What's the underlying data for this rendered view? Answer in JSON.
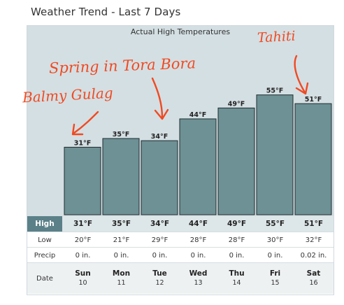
{
  "page_title": "Weather Trend - Last 7 Days",
  "chart_data": {
    "type": "bar",
    "title": "Actual High Temperatures",
    "categories": [
      "Sun",
      "Mon",
      "Tue",
      "Wed",
      "Thu",
      "Fri",
      "Sat"
    ],
    "values": [
      31,
      35,
      34,
      44,
      49,
      55,
      51
    ],
    "labels": [
      "31°F",
      "35°F",
      "34°F",
      "44°F",
      "49°F",
      "55°F",
      "51°F"
    ],
    "unit": "°F",
    "bar_color": "#6d9195",
    "background_color": "#d4dfe3"
  },
  "table": {
    "rows": [
      {
        "header": "High",
        "values": [
          "31°F",
          "35°F",
          "34°F",
          "44°F",
          "49°F",
          "55°F",
          "51°F"
        ]
      },
      {
        "header": "Low",
        "values": [
          "20°F",
          "21°F",
          "29°F",
          "28°F",
          "28°F",
          "30°F",
          "32°F"
        ]
      },
      {
        "header": "Precip",
        "values": [
          "0 in.",
          "0 in.",
          "0 in.",
          "0 in.",
          "0 in.",
          "0 in.",
          "0.02 in."
        ]
      }
    ],
    "date_header": "Date",
    "days": [
      {
        "dow": "Sun",
        "day": "10"
      },
      {
        "dow": "Mon",
        "day": "11"
      },
      {
        "dow": "Tue",
        "day": "12"
      },
      {
        "dow": "Wed",
        "day": "13"
      },
      {
        "dow": "Thu",
        "day": "14"
      },
      {
        "dow": "Fri",
        "day": "15"
      },
      {
        "dow": "Sat",
        "day": "16"
      }
    ]
  },
  "annotations": {
    "balmy": "Balmy Gulag",
    "spring": "Spring in Tora Bora",
    "tahiti": "Tahiti",
    "color": "#f04a22"
  }
}
